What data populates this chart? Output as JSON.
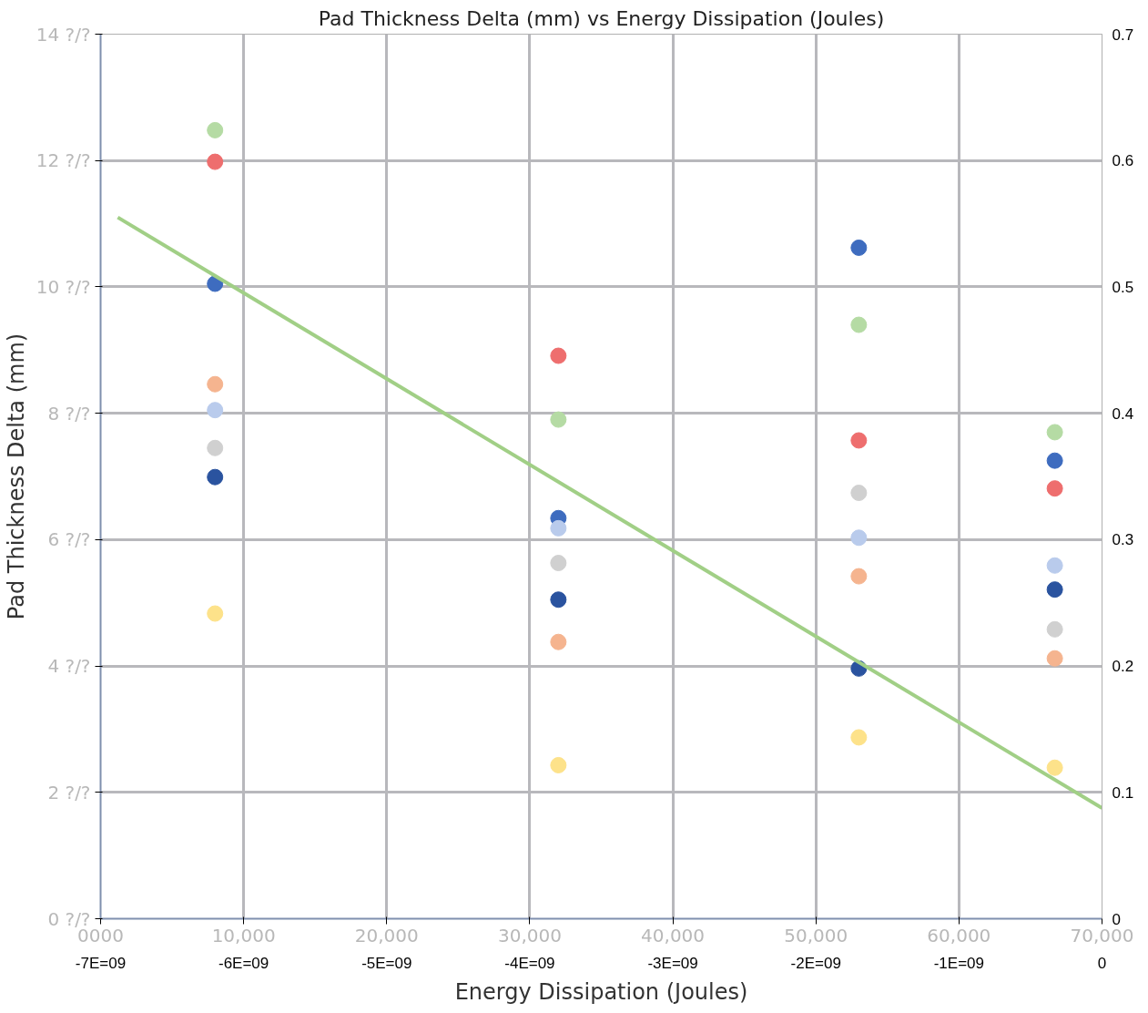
{
  "chart_data": {
    "type": "scatter",
    "title": "Pad Thickness Delta (mm) vs Energy Dissipation (Joules)",
    "xlabel": "Energy Dissipation (Joules)",
    "ylabel": "Pad Thickness Delta (mm)",
    "x": [
      8000,
      32000,
      53000,
      66700
    ],
    "xlim": [
      0,
      70000
    ],
    "xticks": [
      {
        "value": 0,
        "label": "0000"
      },
      {
        "value": 10000,
        "label": "10,000"
      },
      {
        "value": 20000,
        "label": "20,000"
      },
      {
        "value": 30000,
        "label": "30,000"
      },
      {
        "value": 40000,
        "label": "40,000"
      },
      {
        "value": 50000,
        "label": "50,000"
      },
      {
        "value": 60000,
        "label": "60,000"
      },
      {
        "value": 70000,
        "label": "70,000"
      }
    ],
    "annotations": [
      "-7E=09",
      "-6E=09",
      "-5E=09",
      "-4E=09",
      "-3E=09",
      "-2E=09",
      "-1E=09",
      "0"
    ],
    "ylim": [
      0,
      14
    ],
    "yticks": [
      {
        "value": 0,
        "label": "0 ?/?"
      },
      {
        "value": 2,
        "label": "2 ?/?"
      },
      {
        "value": 4,
        "label": "4 ?/?"
      },
      {
        "value": 6,
        "label": "6 ?/?"
      },
      {
        "value": 8,
        "label": "8 ?/?"
      },
      {
        "value": 10,
        "label": "10 ?/?"
      },
      {
        "value": 12,
        "label": "12 ?/?"
      },
      {
        "value": 14,
        "label": "14 ?/?"
      }
    ],
    "y2lim": [
      0,
      0.7
    ],
    "y2ticks": [
      0,
      0.1,
      0.2,
      0.3,
      0.4,
      0.5,
      0.6,
      0.7
    ],
    "marker": "circle",
    "grid": true,
    "series": [
      {
        "color": "#b5dba4",
        "values": [
          12.48,
          7.9,
          9.4,
          7.7
        ]
      },
      {
        "color": "#ee6e6e",
        "values": [
          11.98,
          8.91,
          7.57,
          6.81
        ]
      },
      {
        "color": "#3e6cbf",
        "values": [
          10.05,
          6.34,
          10.62,
          7.25
        ]
      },
      {
        "color": "#2a539f",
        "values": [
          6.99,
          5.05,
          3.96,
          5.21
        ]
      },
      {
        "color": "#b9cbec",
        "values": [
          8.05,
          6.18,
          6.03,
          5.59
        ]
      },
      {
        "color": "#d0d0d0",
        "values": [
          7.45,
          5.63,
          6.74,
          4.58
        ]
      },
      {
        "color": "#f5b48f",
        "values": [
          8.46,
          4.38,
          5.42,
          4.12
        ]
      },
      {
        "color": "#fde28a",
        "values": [
          4.83,
          2.43,
          2.87,
          2.39
        ]
      },
      {
        "type": "line",
        "marker": "none",
        "color": "#a1cf86",
        "x": [
          1200,
          70000
        ],
        "values": [
          11.1,
          1.75
        ]
      }
    ]
  }
}
